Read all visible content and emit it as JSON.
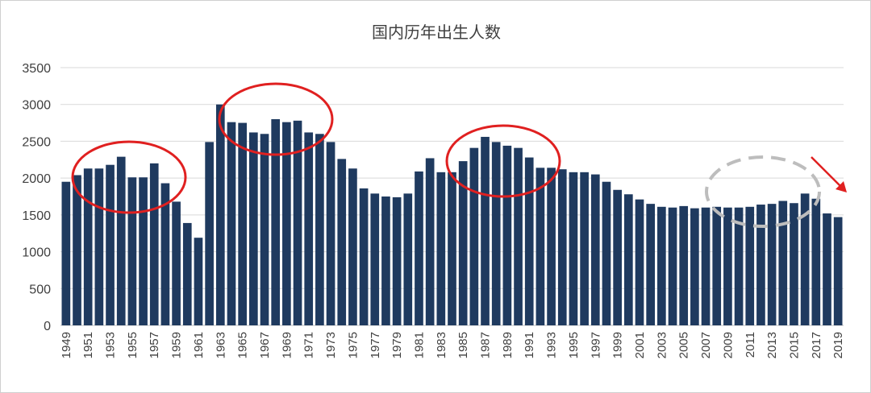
{
  "chart_data": {
    "type": "bar",
    "title": "国内历年出生人数",
    "xlabel": "",
    "ylabel": "",
    "ylim": [
      0,
      3500
    ],
    "yticks": [
      0,
      500,
      1000,
      1500,
      2000,
      2500,
      3000,
      3500
    ],
    "grid": true,
    "bar_color": "#1f3a5f",
    "x_tick_labels": [
      "1949",
      "1951",
      "1953",
      "1955",
      "1957",
      "1959",
      "1961",
      "1963",
      "1965",
      "1967",
      "1969",
      "1971",
      "1973",
      "1975",
      "1977",
      "1979",
      "1981",
      "1983",
      "1985",
      "1987",
      "1989",
      "1991",
      "1993",
      "1995",
      "1997",
      "1999",
      "2001",
      "2003",
      "2005",
      "2007",
      "2009",
      "2011",
      "2013",
      "2015",
      "2017",
      "2019"
    ],
    "categories": [
      "1949",
      "1950",
      "1951",
      "1952",
      "1953",
      "1954",
      "1955",
      "1956",
      "1957",
      "1958",
      "1959",
      "1960",
      "1961",
      "1962",
      "1963",
      "1964",
      "1965",
      "1966",
      "1967",
      "1968",
      "1969",
      "1970",
      "1971",
      "1972",
      "1973",
      "1974",
      "1975",
      "1976",
      "1977",
      "1978",
      "1979",
      "1980",
      "1981",
      "1982",
      "1983",
      "1984",
      "1985",
      "1986",
      "1987",
      "1988",
      "1989",
      "1990",
      "1991",
      "1992",
      "1993",
      "1994",
      "1995",
      "1996",
      "1997",
      "1998",
      "1999",
      "2000",
      "2001",
      "2002",
      "2003",
      "2004",
      "2005",
      "2006",
      "2007",
      "2008",
      "2009",
      "2010",
      "2011",
      "2012",
      "2013",
      "2014",
      "2015",
      "2016",
      "2017",
      "2018",
      "2019"
    ],
    "values": [
      1950,
      2040,
      2130,
      2130,
      2180,
      2290,
      2010,
      2010,
      2200,
      1930,
      1680,
      1390,
      1190,
      2490,
      3000,
      2760,
      2750,
      2620,
      2600,
      2800,
      2760,
      2780,
      2620,
      2600,
      2490,
      2260,
      2130,
      1860,
      1790,
      1750,
      1740,
      1790,
      2090,
      2270,
      2080,
      2080,
      2230,
      2410,
      2560,
      2490,
      2440,
      2410,
      2280,
      2140,
      2140,
      2120,
      2080,
      2080,
      2050,
      1950,
      1840,
      1780,
      1710,
      1650,
      1610,
      1600,
      1620,
      1590,
      1600,
      1610,
      1600,
      1600,
      1610,
      1640,
      1650,
      1690,
      1660,
      1790,
      1720,
      1520,
      1470
    ],
    "annotations": {
      "red_circle_color": "#e02020",
      "dashed_circle_color": "#bdbdbd",
      "arrow_color": "#e02020"
    }
  }
}
